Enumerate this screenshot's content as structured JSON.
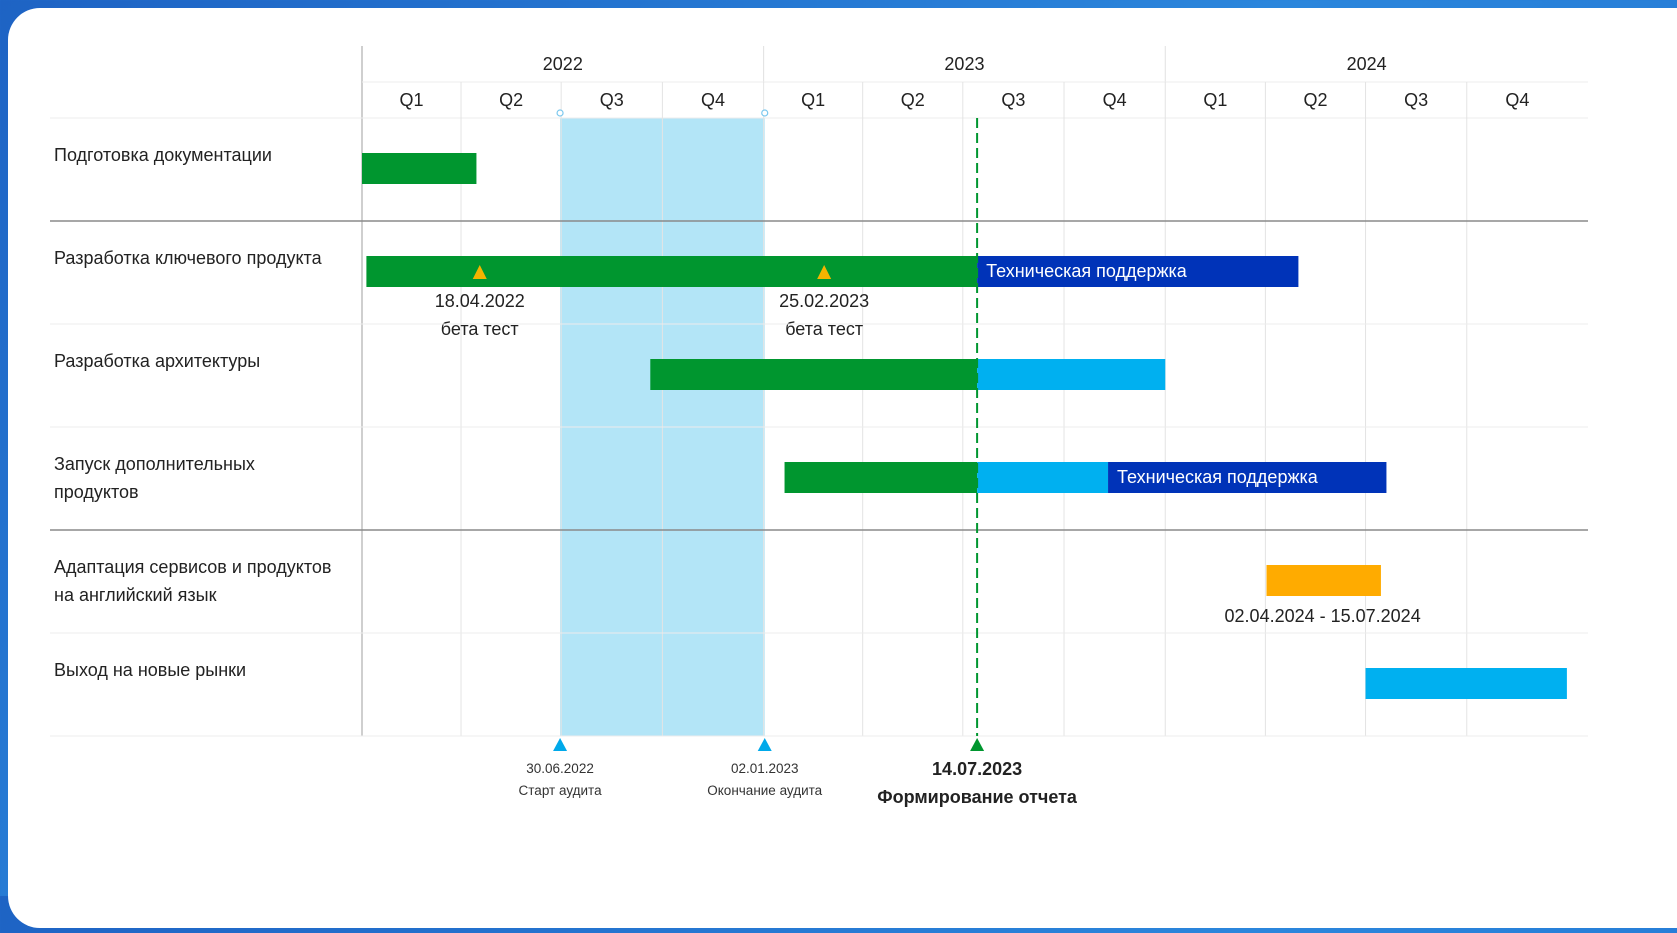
{
  "chart_data": {
    "type": "gantt",
    "timeline": {
      "years": [
        {
          "label": "2022",
          "start": "2022-01-01",
          "end": "2023-01-01"
        },
        {
          "label": "2023",
          "start": "2023-01-01",
          "end": "2024-01-01"
        },
        {
          "label": "2024",
          "start": "2024-01-01",
          "end": "2025-01-01"
        }
      ],
      "quarters": [
        {
          "label": "Q1",
          "start": "2022-01-01"
        },
        {
          "label": "Q2",
          "start": "2022-04-01"
        },
        {
          "label": "Q3",
          "start": "2022-07-01"
        },
        {
          "label": "Q4",
          "start": "2022-10-01"
        },
        {
          "label": "Q1",
          "start": "2023-01-01"
        },
        {
          "label": "Q2",
          "start": "2023-04-01"
        },
        {
          "label": "Q3",
          "start": "2023-07-01"
        },
        {
          "label": "Q4",
          "start": "2023-10-01"
        },
        {
          "label": "Q1",
          "start": "2024-01-01"
        },
        {
          "label": "Q2",
          "start": "2024-04-01"
        },
        {
          "label": "Q3",
          "start": "2024-07-01"
        },
        {
          "label": "Q4",
          "start": "2024-10-01"
        }
      ]
    },
    "rows": [
      {
        "lines": [
          "Подготовка документации"
        ],
        "group_end": true,
        "bars": [
          {
            "start": "2022-01-01",
            "end": "2022-04-15",
            "color": "#00962f"
          }
        ]
      },
      {
        "lines": [
          "Разработка ключевого продукта"
        ],
        "bars": [
          {
            "start": "2022-01-05",
            "end": "2023-07-14",
            "color": "#00962f"
          },
          {
            "start": "2023-07-14",
            "end": "2024-05-01",
            "color": "#0033b8",
            "label": "Техническая поддержка"
          }
        ],
        "milestones": [
          {
            "date": "2022-04-18",
            "lines": [
              "18.04.2022",
              "бета тест"
            ],
            "color": "#f4b400"
          },
          {
            "date": "2023-02-25",
            "lines": [
              "25.02.2023",
              "бета тест"
            ],
            "color": "#f4b400"
          }
        ]
      },
      {
        "lines": [
          "Разработка архитектуры"
        ],
        "bars": [
          {
            "start": "2022-09-20",
            "end": "2023-07-14",
            "color": "#00962f"
          },
          {
            "start": "2023-07-14",
            "end": "2024-01-01",
            "color": "#00b0f0"
          }
        ]
      },
      {
        "lines": [
          "Запуск дополнительных",
          "продуктов"
        ],
        "group_end": true,
        "bars": [
          {
            "start": "2023-01-20",
            "end": "2023-07-14",
            "color": "#00962f"
          },
          {
            "start": "2023-07-14",
            "end": "2023-11-10",
            "color": "#00b0f0"
          },
          {
            "start": "2023-11-10",
            "end": "2024-07-20",
            "color": "#0033b8",
            "label": "Техническая поддержка"
          }
        ]
      },
      {
        "lines": [
          "Адаптация сервисов и продуктов",
          "на английский язык"
        ],
        "bars": [
          {
            "start": "2024-04-02",
            "end": "2024-07-15",
            "color": "#ffab00"
          }
        ],
        "annotations": [
          {
            "date": "2024-05-23",
            "text": "02.04.2024 - 15.07.2024"
          }
        ]
      },
      {
        "lines": [
          "Выход на новые рынки"
        ],
        "bars": [
          {
            "start": "2024-07-01",
            "end": "2024-12-31",
            "color": "#00b0f0"
          }
        ]
      }
    ],
    "audit_period": {
      "start": "2022-06-30",
      "end": "2023-01-02",
      "color": "#b3e5f7"
    },
    "markers": [
      {
        "date": "2022-06-30",
        "lines": [
          "30.06.2022",
          "Старт аудита"
        ],
        "color": "#00a9ea",
        "emphasis": false
      },
      {
        "date": "2023-01-02",
        "lines": [
          "02.01.2023",
          "Окончание аудита"
        ],
        "color": "#00a9ea",
        "emphasis": false
      },
      {
        "date": "2023-07-14",
        "lines": [
          "14.07.2023",
          "Формирование отчета"
        ],
        "color": "#00962f",
        "emphasis": true
      }
    ],
    "today_line": {
      "date": "2023-07-14",
      "style": "dashed",
      "color": "#00962f"
    }
  }
}
